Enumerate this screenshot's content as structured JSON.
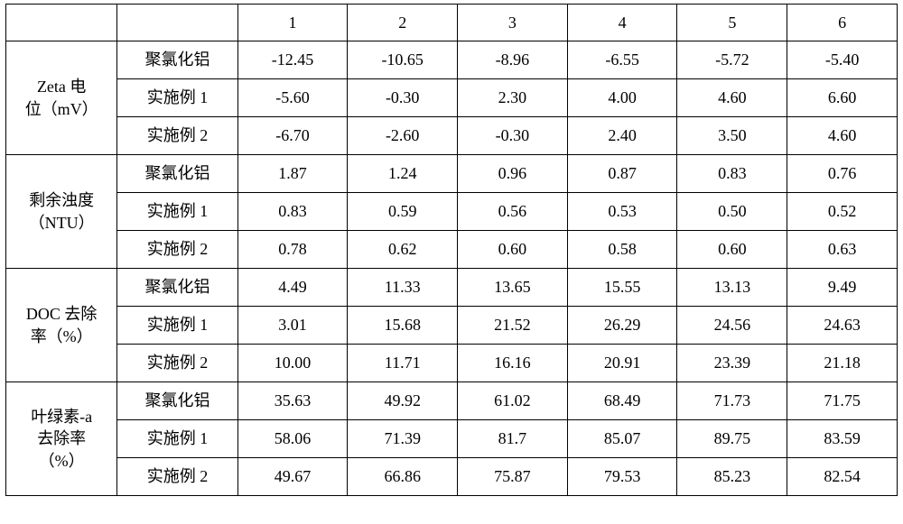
{
  "font": {
    "data_size_pt": 18,
    "header_size_pt": 18,
    "color": "#000000"
  },
  "border_color": "#000000",
  "background_color": "#ffffff",
  "columns": {
    "numeric_headers": [
      "1",
      "2",
      "3",
      "4",
      "5",
      "6"
    ]
  },
  "groups": [
    {
      "label_lines": [
        "Zeta 电",
        "位（mV）"
      ],
      "rows": [
        {
          "label": "聚氯化铝",
          "values": [
            "-12.45",
            "-10.65",
            "-8.96",
            "-6.55",
            "-5.72",
            "-5.40"
          ]
        },
        {
          "label": "实施例 1",
          "values": [
            "-5.60",
            "-0.30",
            "2.30",
            "4.00",
            "4.60",
            "6.60"
          ]
        },
        {
          "label": "实施例 2",
          "values": [
            "-6.70",
            "-2.60",
            "-0.30",
            "2.40",
            "3.50",
            "4.60"
          ]
        }
      ]
    },
    {
      "label_lines": [
        "剩余浊度",
        "（NTU）"
      ],
      "rows": [
        {
          "label": "聚氯化铝",
          "values": [
            "1.87",
            "1.24",
            "0.96",
            "0.87",
            "0.83",
            "0.76"
          ]
        },
        {
          "label": "实施例 1",
          "values": [
            "0.83",
            "0.59",
            "0.56",
            "0.53",
            "0.50",
            "0.52"
          ]
        },
        {
          "label": "实施例 2",
          "values": [
            "0.78",
            "0.62",
            "0.60",
            "0.58",
            "0.60",
            "0.63"
          ]
        }
      ]
    },
    {
      "label_lines": [
        "DOC 去除",
        "率（%）"
      ],
      "rows": [
        {
          "label": "聚氯化铝",
          "values": [
            "4.49",
            "11.33",
            "13.65",
            "15.55",
            "13.13",
            "9.49"
          ]
        },
        {
          "label": "实施例 1",
          "values": [
            "3.01",
            "15.68",
            "21.52",
            "26.29",
            "24.56",
            "24.63"
          ]
        },
        {
          "label": "实施例 2",
          "values": [
            "10.00",
            "11.71",
            "16.16",
            "20.91",
            "23.39",
            "21.18"
          ]
        }
      ]
    },
    {
      "label_lines": [
        "叶绿素-a",
        "去除率",
        "（%）"
      ],
      "rows": [
        {
          "label": "聚氯化铝",
          "values": [
            "35.63",
            "49.92",
            "61.02",
            "68.49",
            "71.73",
            "71.75"
          ]
        },
        {
          "label": "实施例 1",
          "values": [
            "58.06",
            "71.39",
            "81.7",
            "85.07",
            "89.75",
            "83.59"
          ]
        },
        {
          "label": "实施例 2",
          "values": [
            "49.67",
            "66.86",
            "75.87",
            "79.53",
            "85.23",
            "82.54"
          ]
        }
      ]
    }
  ]
}
